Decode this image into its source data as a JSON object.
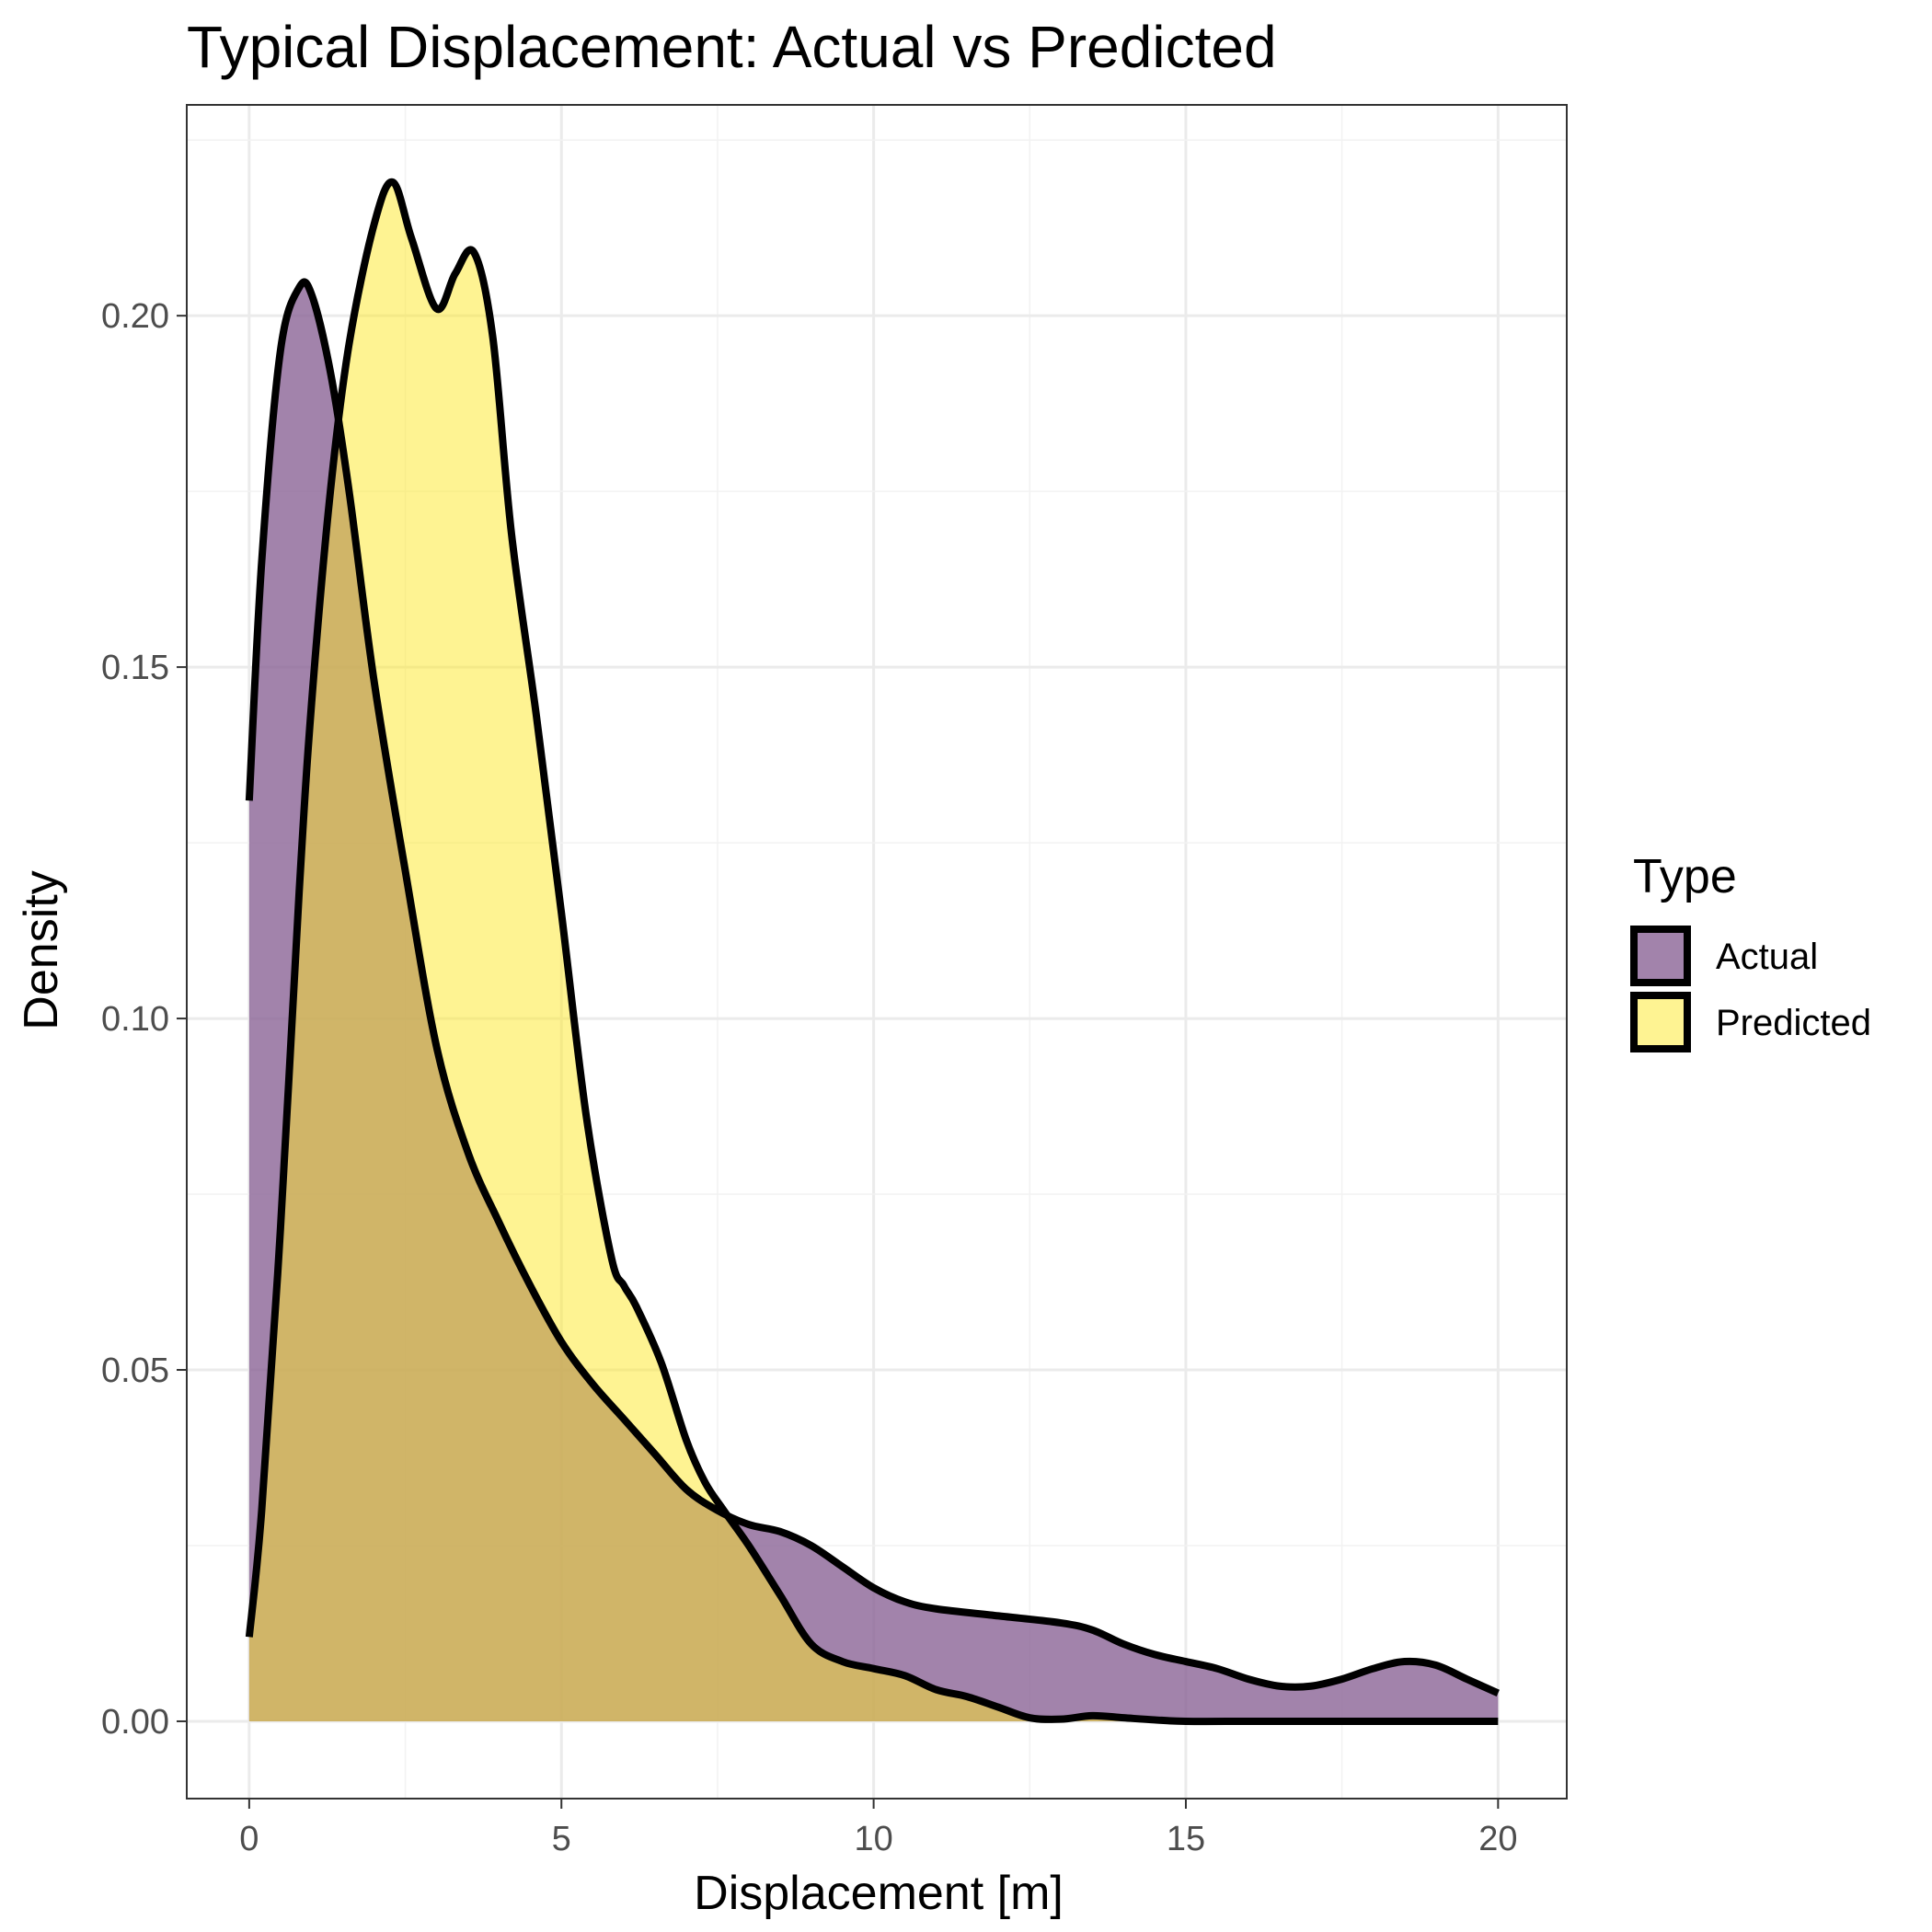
{
  "chart_data": {
    "type": "area",
    "title": "Typical Displacement: Actual vs Predicted",
    "xlabel": "Displacement [m]",
    "ylabel": "Density",
    "xlim": [
      -1,
      21.1
    ],
    "ylim": [
      -0.011,
      0.23
    ],
    "x_ticks": [
      0,
      5,
      10,
      15,
      20
    ],
    "x_tick_labels": [
      "0",
      "5",
      "10",
      "15",
      "20"
    ],
    "y_ticks": [
      0.0,
      0.05,
      0.1,
      0.15,
      0.2
    ],
    "y_tick_labels": [
      "0.00",
      "0.05",
      "0.10",
      "0.15",
      "0.20"
    ],
    "grid": true,
    "legend": {
      "title": "Type",
      "placement": "right"
    },
    "series": [
      {
        "name": "Actual",
        "color": "#8B6496",
        "opacity": 0.8,
        "x": [
          0,
          0.2,
          0.5,
          0.8,
          1.0,
          1.3,
          1.6,
          2.0,
          2.5,
          3.0,
          3.5,
          4.0,
          4.5,
          5.0,
          5.5,
          6.0,
          6.5,
          7.0,
          7.5,
          8.0,
          8.5,
          9.0,
          9.5,
          10.0,
          10.5,
          11.0,
          12.0,
          13.0,
          13.5,
          14.0,
          14.5,
          15.0,
          15.5,
          16.0,
          16.5,
          17.0,
          17.5,
          18.0,
          18.5,
          19.0,
          19.5,
          20.0
        ],
        "y": [
          0.131,
          0.165,
          0.195,
          0.204,
          0.203,
          0.192,
          0.175,
          0.148,
          0.121,
          0.096,
          0.081,
          0.071,
          0.062,
          0.054,
          0.048,
          0.043,
          0.038,
          0.033,
          0.03,
          0.028,
          0.027,
          0.025,
          0.022,
          0.019,
          0.017,
          0.016,
          0.015,
          0.014,
          0.013,
          0.011,
          0.0095,
          0.0085,
          0.0075,
          0.006,
          0.005,
          0.005,
          0.006,
          0.0075,
          0.0085,
          0.008,
          0.006,
          0.004
        ]
      },
      {
        "name": "Predicted",
        "color": "#FDE725",
        "opacity": 0.5,
        "x": [
          0,
          0.2,
          0.5,
          0.8,
          1.0,
          1.3,
          1.6,
          2.0,
          2.3,
          2.6,
          3.0,
          3.3,
          3.6,
          3.9,
          4.2,
          4.6,
          5.0,
          5.4,
          5.8,
          6.0,
          6.2,
          6.6,
          7.0,
          7.3,
          7.6,
          8.0,
          8.5,
          9.0,
          9.5,
          10.0,
          10.5,
          11.0,
          11.5,
          12.0,
          12.5,
          13.0,
          13.5,
          14.0,
          14.5,
          15.0,
          16.0,
          17.0,
          18.0,
          19.0,
          20.0
        ],
        "y": [
          0.012,
          0.03,
          0.07,
          0.118,
          0.145,
          0.175,
          0.196,
          0.213,
          0.219,
          0.211,
          0.201,
          0.206,
          0.209,
          0.197,
          0.169,
          0.143,
          0.115,
          0.086,
          0.066,
          0.062,
          0.059,
          0.051,
          0.04,
          0.034,
          0.03,
          0.025,
          0.018,
          0.011,
          0.0085,
          0.0075,
          0.0065,
          0.0045,
          0.0035,
          0.002,
          0.0005,
          0.0003,
          0.0008,
          0.0005,
          0.0002,
          0.0,
          0.0,
          0.0,
          0.0,
          0.0,
          0.0
        ]
      }
    ]
  }
}
